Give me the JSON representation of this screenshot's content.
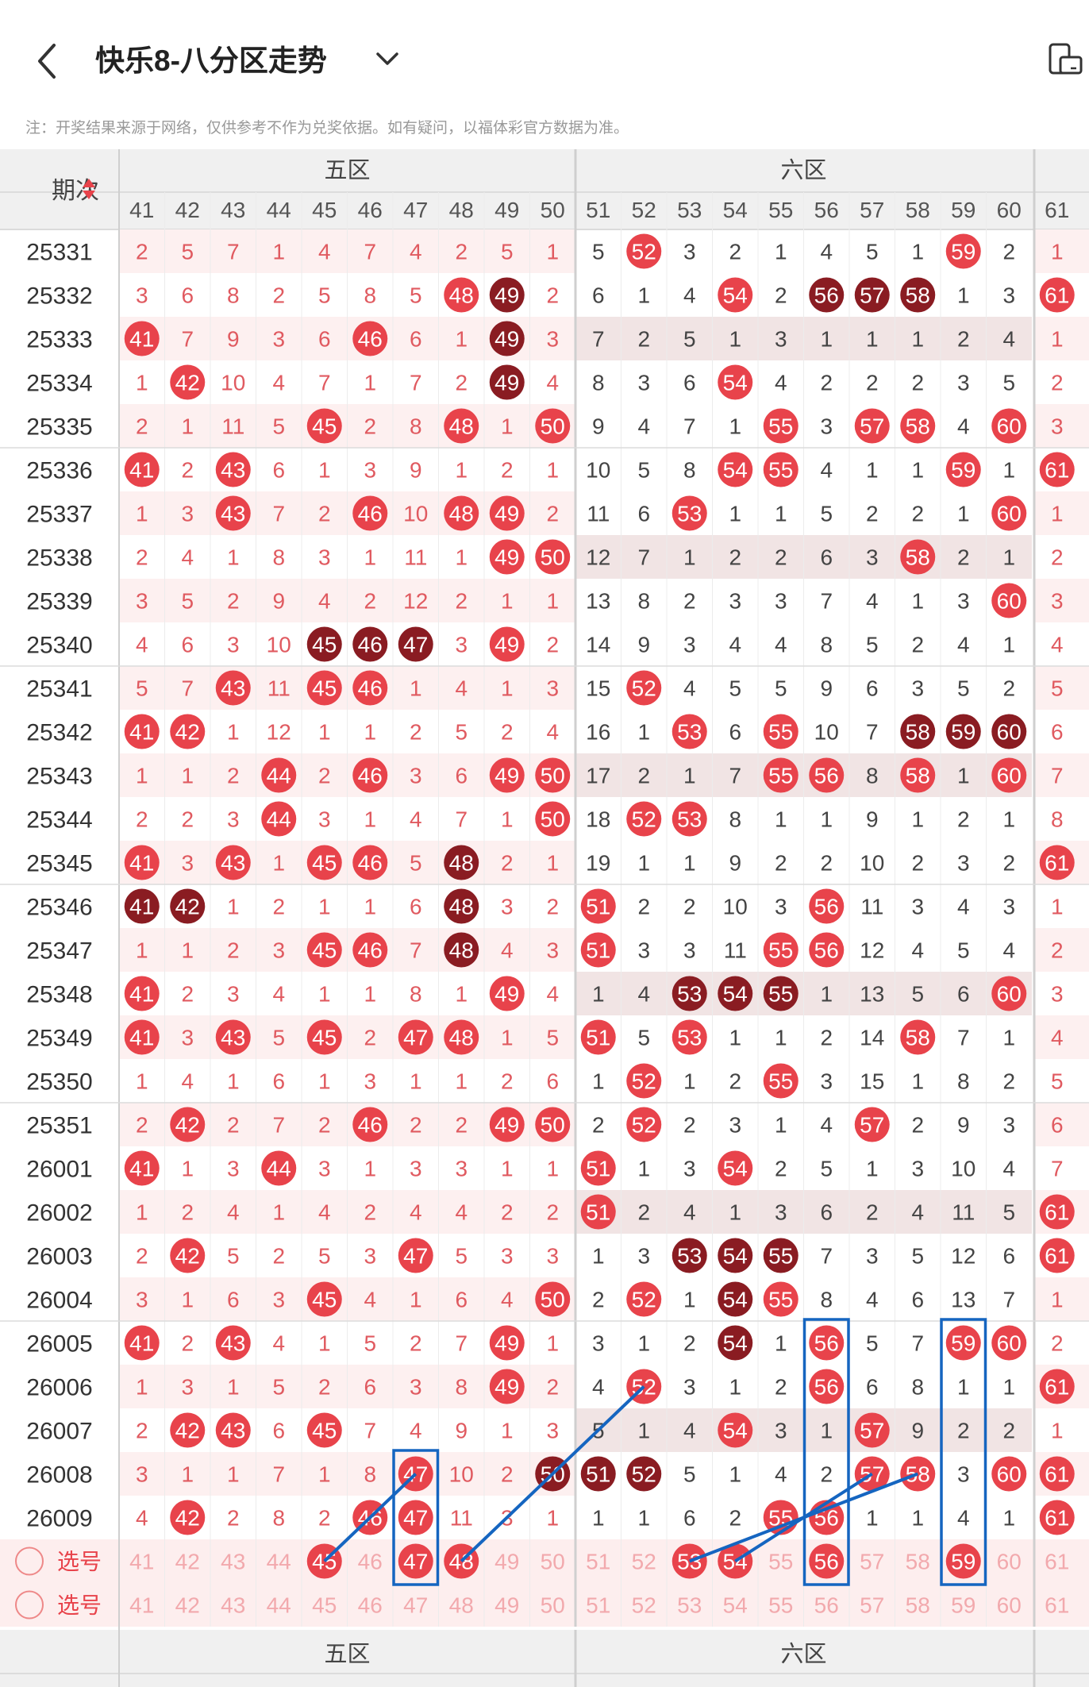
{
  "header": {
    "back_icon": "chevron-left-icon",
    "title": "快乐8-八分区走势",
    "dropdown_icon": "chevron-down-icon",
    "device_icon": "device-toggle-icon"
  },
  "notice": "注：开奖结果来源于网络，仅供参考不作为兑奖依据。如有疑问，以福体彩官方数据为准。",
  "table": {
    "period_header": "期次",
    "zones": [
      "五区",
      "六区"
    ],
    "columns": [
      "41",
      "42",
      "43",
      "44",
      "45",
      "46",
      "47",
      "48",
      "49",
      "50",
      "51",
      "52",
      "53",
      "54",
      "55",
      "56",
      "57",
      "58",
      "59",
      "60",
      "61"
    ],
    "rows": [
      {
        "p": "25331",
        "v": [
          "2",
          "5",
          "7",
          "1",
          "4",
          "7",
          "4",
          "2",
          "5",
          "1",
          "5",
          "52",
          "3",
          "2",
          "1",
          "4",
          "5",
          "1",
          "59",
          "2",
          "1"
        ]
      },
      {
        "p": "25332",
        "v": [
          "3",
          "6",
          "8",
          "2",
          "5",
          "8",
          "5",
          "48",
          "49",
          "2",
          "6",
          "1",
          "4",
          "54",
          "2",
          "56",
          "57",
          "58",
          "1",
          "3",
          "61"
        ]
      },
      {
        "p": "25333",
        "v": [
          "41",
          "7",
          "9",
          "3",
          "6",
          "46",
          "6",
          "1",
          "49",
          "3",
          "7",
          "2",
          "5",
          "1",
          "3",
          "1",
          "1",
          "1",
          "2",
          "4",
          "1"
        ]
      },
      {
        "p": "25334",
        "v": [
          "1",
          "42",
          "10",
          "4",
          "7",
          "1",
          "7",
          "2",
          "49",
          "4",
          "8",
          "3",
          "6",
          "54",
          "4",
          "2",
          "2",
          "2",
          "3",
          "5",
          "2"
        ]
      },
      {
        "p": "25335",
        "v": [
          "2",
          "1",
          "11",
          "5",
          "45",
          "2",
          "8",
          "48",
          "1",
          "50",
          "9",
          "4",
          "7",
          "1",
          "55",
          "3",
          "57",
          "58",
          "4",
          "60",
          "3"
        ]
      },
      {
        "p": "25336",
        "v": [
          "41",
          "2",
          "43",
          "6",
          "1",
          "3",
          "9",
          "1",
          "2",
          "1",
          "10",
          "5",
          "8",
          "54",
          "55",
          "4",
          "1",
          "1",
          "59",
          "1",
          "61"
        ]
      },
      {
        "p": "25337",
        "v": [
          "1",
          "3",
          "43",
          "7",
          "2",
          "46",
          "10",
          "48",
          "49",
          "2",
          "11",
          "6",
          "53",
          "1",
          "1",
          "5",
          "2",
          "2",
          "1",
          "60",
          "1"
        ]
      },
      {
        "p": "25338",
        "v": [
          "2",
          "4",
          "1",
          "8",
          "3",
          "1",
          "11",
          "1",
          "49",
          "50",
          "12",
          "7",
          "1",
          "2",
          "2",
          "6",
          "3",
          "58",
          "2",
          "1",
          "2"
        ]
      },
      {
        "p": "25339",
        "v": [
          "3",
          "5",
          "2",
          "9",
          "4",
          "2",
          "12",
          "2",
          "1",
          "1",
          "13",
          "8",
          "2",
          "3",
          "3",
          "7",
          "4",
          "1",
          "3",
          "60",
          "3"
        ]
      },
      {
        "p": "25340",
        "v": [
          "4",
          "6",
          "3",
          "10",
          "45",
          "46",
          "47",
          "3",
          "49",
          "2",
          "14",
          "9",
          "3",
          "4",
          "4",
          "8",
          "5",
          "2",
          "4",
          "1",
          "4"
        ]
      },
      {
        "p": "25341",
        "v": [
          "5",
          "7",
          "43",
          "11",
          "45",
          "46",
          "1",
          "4",
          "1",
          "3",
          "15",
          "52",
          "4",
          "5",
          "5",
          "9",
          "6",
          "3",
          "5",
          "2",
          "5"
        ]
      },
      {
        "p": "25342",
        "v": [
          "41",
          "42",
          "1",
          "12",
          "1",
          "1",
          "2",
          "5",
          "2",
          "4",
          "16",
          "1",
          "53",
          "6",
          "55",
          "10",
          "7",
          "58",
          "59",
          "60",
          "6"
        ]
      },
      {
        "p": "25343",
        "v": [
          "1",
          "1",
          "2",
          "44",
          "2",
          "46",
          "3",
          "6",
          "49",
          "50",
          "17",
          "2",
          "1",
          "7",
          "55",
          "56",
          "8",
          "58",
          "1",
          "60",
          "7"
        ]
      },
      {
        "p": "25344",
        "v": [
          "2",
          "2",
          "3",
          "44",
          "3",
          "1",
          "4",
          "7",
          "1",
          "50",
          "18",
          "52",
          "53",
          "8",
          "1",
          "1",
          "9",
          "1",
          "2",
          "1",
          "8"
        ]
      },
      {
        "p": "25345",
        "v": [
          "41",
          "3",
          "43",
          "1",
          "45",
          "46",
          "5",
          "48",
          "2",
          "1",
          "19",
          "1",
          "1",
          "9",
          "2",
          "2",
          "10",
          "2",
          "3",
          "2",
          "61"
        ]
      },
      {
        "p": "25346",
        "v": [
          "41",
          "42",
          "1",
          "2",
          "1",
          "1",
          "6",
          "48",
          "3",
          "2",
          "51",
          "2",
          "2",
          "10",
          "3",
          "56",
          "11",
          "3",
          "4",
          "3",
          "1"
        ]
      },
      {
        "p": "25347",
        "v": [
          "1",
          "1",
          "2",
          "3",
          "45",
          "46",
          "7",
          "48",
          "4",
          "3",
          "51",
          "3",
          "3",
          "11",
          "55",
          "56",
          "12",
          "4",
          "5",
          "4",
          "2"
        ]
      },
      {
        "p": "25348",
        "v": [
          "41",
          "2",
          "3",
          "4",
          "1",
          "1",
          "8",
          "1",
          "49",
          "4",
          "1",
          "4",
          "53",
          "54",
          "55",
          "1",
          "13",
          "5",
          "6",
          "60",
          "3"
        ]
      },
      {
        "p": "25349",
        "v": [
          "41",
          "3",
          "43",
          "5",
          "45",
          "2",
          "47",
          "48",
          "1",
          "5",
          "51",
          "5",
          "53",
          "1",
          "1",
          "2",
          "14",
          "58",
          "7",
          "1",
          "4"
        ]
      },
      {
        "p": "25350",
        "v": [
          "1",
          "4",
          "1",
          "6",
          "1",
          "3",
          "1",
          "1",
          "2",
          "6",
          "1",
          "52",
          "1",
          "2",
          "55",
          "3",
          "15",
          "1",
          "8",
          "2",
          "5"
        ]
      },
      {
        "p": "25351",
        "v": [
          "2",
          "42",
          "2",
          "7",
          "2",
          "46",
          "2",
          "2",
          "49",
          "50",
          "2",
          "52",
          "2",
          "3",
          "1",
          "4",
          "57",
          "2",
          "9",
          "3",
          "6"
        ]
      },
      {
        "p": "26001",
        "v": [
          "41",
          "1",
          "3",
          "44",
          "3",
          "1",
          "3",
          "3",
          "1",
          "1",
          "51",
          "1",
          "3",
          "54",
          "2",
          "5",
          "1",
          "3",
          "10",
          "4",
          "7"
        ]
      },
      {
        "p": "26002",
        "v": [
          "1",
          "2",
          "4",
          "1",
          "4",
          "2",
          "4",
          "4",
          "2",
          "2",
          "51",
          "2",
          "4",
          "1",
          "3",
          "6",
          "2",
          "4",
          "11",
          "5",
          "61"
        ]
      },
      {
        "p": "26003",
        "v": [
          "2",
          "42",
          "5",
          "2",
          "5",
          "3",
          "47",
          "5",
          "3",
          "3",
          "1",
          "3",
          "53",
          "54",
          "55",
          "7",
          "3",
          "5",
          "12",
          "6",
          "61"
        ]
      },
      {
        "p": "26004",
        "v": [
          "3",
          "1",
          "6",
          "3",
          "45",
          "4",
          "1",
          "6",
          "4",
          "50",
          "2",
          "52",
          "1",
          "54",
          "55",
          "8",
          "4",
          "6",
          "13",
          "7",
          "1"
        ]
      },
      {
        "p": "26005",
        "v": [
          "41",
          "2",
          "43",
          "4",
          "1",
          "5",
          "2",
          "7",
          "49",
          "1",
          "3",
          "1",
          "2",
          "54",
          "1",
          "56",
          "5",
          "7",
          "59",
          "60",
          "2"
        ]
      },
      {
        "p": "26006",
        "v": [
          "1",
          "3",
          "1",
          "5",
          "2",
          "6",
          "3",
          "8",
          "49",
          "2",
          "4",
          "52",
          "3",
          "1",
          "2",
          "56",
          "6",
          "8",
          "1",
          "1",
          "61"
        ]
      },
      {
        "p": "26007",
        "v": [
          "2",
          "42",
          "43",
          "6",
          "45",
          "7",
          "4",
          "9",
          "1",
          "3",
          "5",
          "1",
          "4",
          "54",
          "3",
          "1",
          "57",
          "9",
          "2",
          "2",
          "1"
        ]
      },
      {
        "p": "26008",
        "v": [
          "3",
          "1",
          "1",
          "7",
          "1",
          "8",
          "47",
          "10",
          "2",
          "50",
          "51",
          "52",
          "5",
          "1",
          "4",
          "2",
          "57",
          "58",
          "3",
          "60",
          "61"
        ]
      },
      {
        "p": "26009",
        "v": [
          "4",
          "42",
          "2",
          "8",
          "2",
          "46",
          "47",
          "11",
          "3",
          "1",
          "1",
          "1",
          "6",
          "2",
          "55",
          "56",
          "1",
          "1",
          "4",
          "1",
          "61"
        ]
      }
    ],
    "dark_balls": {
      "25332": [
        "49",
        "56",
        "57",
        "58"
      ],
      "25333": [
        "49"
      ],
      "25334": [
        "49"
      ],
      "25340": [
        "45",
        "46",
        "47"
      ],
      "25342": [
        "58",
        "59",
        "60"
      ],
      "25345": [
        "48"
      ],
      "25346": [
        "41",
        "42",
        "48"
      ],
      "25347": [
        "48"
      ],
      "25348": [
        "53",
        "54",
        "55"
      ],
      "26003": [
        "53",
        "54",
        "55"
      ],
      "26004": [
        "54"
      ],
      "26005": [
        "54"
      ],
      "26008": [
        "50",
        "51",
        "52"
      ]
    },
    "select_rows": [
      {
        "label": "选号",
        "selected": [
          "45",
          "47",
          "48",
          "53",
          "54",
          "56",
          "59"
        ]
      },
      {
        "label": "选号",
        "selected": []
      }
    ],
    "bottom_period_header": "-"
  },
  "colors": {
    "ball_red": "#e8434b",
    "ball_dark": "#8a1c22",
    "stripe_pink": "#fdf0f0",
    "header_bg": "#f0f0f0",
    "highlight_line": "#1565c0"
  }
}
